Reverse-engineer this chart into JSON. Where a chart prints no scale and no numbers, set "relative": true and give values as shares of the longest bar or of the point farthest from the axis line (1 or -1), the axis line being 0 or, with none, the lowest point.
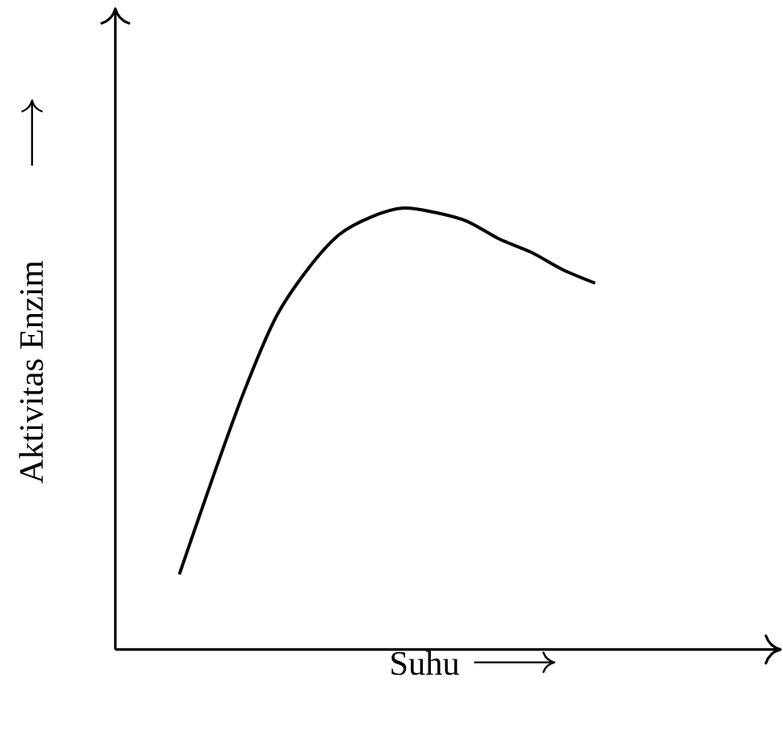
{
  "chart_data": {
    "type": "line",
    "xlabel": "Suhu",
    "ylabel": "Aktivitas Enzim",
    "relative": true,
    "color": "#000000",
    "categories": [
      null,
      null,
      null,
      null,
      null,
      null,
      null,
      null,
      null,
      null,
      null,
      null,
      null,
      null
    ],
    "values": [
      0.17,
      0.38,
      0.58,
      0.75,
      0.86,
      0.94,
      0.98,
      1.0,
      0.99,
      0.97,
      0.93,
      0.9,
      0.86,
      0.83
    ]
  }
}
